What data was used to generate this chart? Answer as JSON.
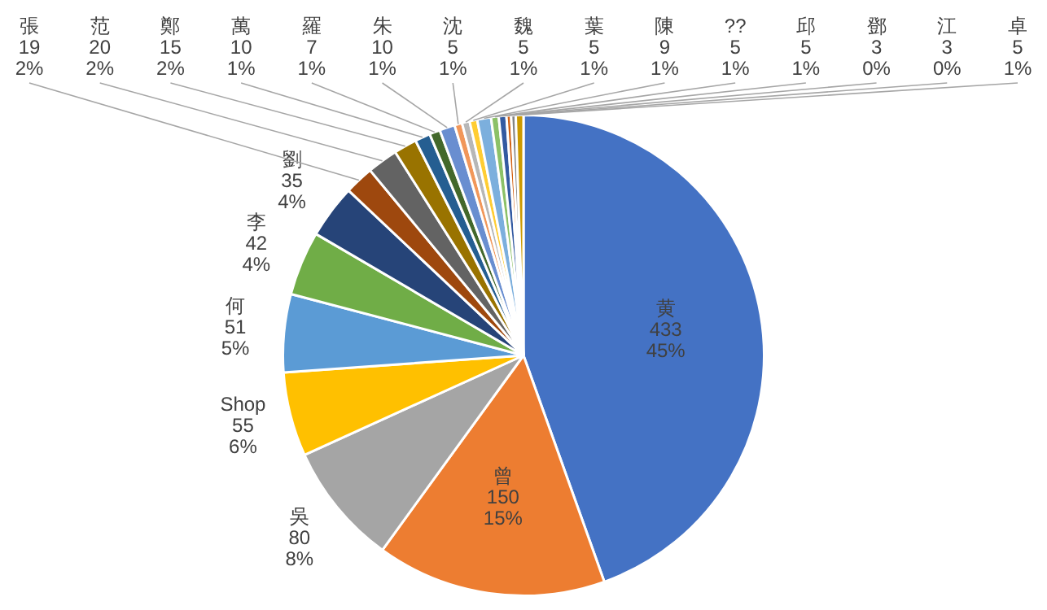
{
  "chart_data": {
    "type": "pie",
    "legend": false,
    "categories": [
      "黄",
      "曾",
      "吳",
      "Shop",
      "何",
      "李",
      "劉",
      "張",
      "范",
      "鄭",
      "萬",
      "羅",
      "朱",
      "沈",
      "魏",
      "葉",
      "陳",
      "??",
      "邱",
      "鄧",
      "江",
      "卓"
    ],
    "values": [
      433,
      150,
      80,
      55,
      51,
      42,
      35,
      19,
      20,
      15,
      10,
      7,
      10,
      5,
      5,
      5,
      9,
      5,
      5,
      3,
      3,
      5
    ],
    "value_labels": [
      "433\n45%",
      "150\n15%",
      "80\n8%",
      "55\n6%",
      "51\n5%",
      "42\n4%",
      "35\n4%",
      "19\n2%",
      "20\n2%",
      "15\n2%",
      "10\n1%",
      "7\n1%",
      "10\n1%",
      "5\n1%",
      "5\n1%",
      "5\n1%",
      "9\n1%",
      "5\n1%",
      "5\n1%",
      "3\n0%",
      "3\n0%",
      "5\n1%"
    ],
    "colors": [
      "#4472c4",
      "#ed7d31",
      "#a5a5a5",
      "#ffc000",
      "#5b9bd5",
      "#70ad47",
      "#264478",
      "#9e480e",
      "#636363",
      "#997300",
      "#255e91",
      "#43682b",
      "#698ed0",
      "#f1975a",
      "#b7b7b7",
      "#ffcd33",
      "#7cafdd",
      "#8cc168",
      "#335aa1",
      "#d26012",
      "#848484",
      "#cc9a00"
    ]
  }
}
